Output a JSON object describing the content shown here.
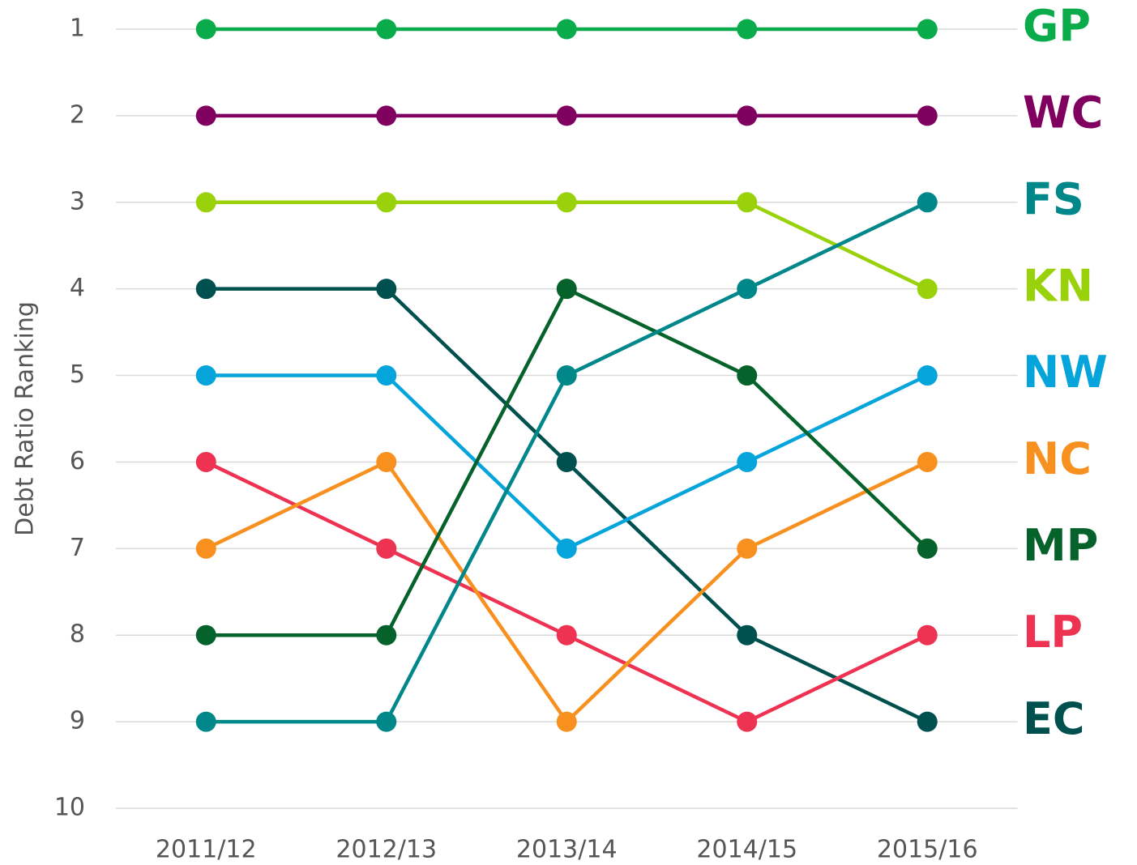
{
  "chart_data": {
    "type": "line",
    "y_label": "Debt Ratio Ranking",
    "categories": [
      "2011/12",
      "2012/13",
      "2013/14",
      "2014/15",
      "2015/16"
    ],
    "ylim": [
      1,
      10
    ],
    "y_inverted": true,
    "yticks": [
      1,
      2,
      3,
      4,
      5,
      6,
      7,
      8,
      9,
      10
    ],
    "grid": true,
    "series": [
      {
        "name": "GP",
        "color": "#0aab4a",
        "values": [
          1,
          1,
          1,
          1,
          1
        ]
      },
      {
        "name": "WC",
        "color": "#800060",
        "values": [
          2,
          2,
          2,
          2,
          2
        ]
      },
      {
        "name": "KN",
        "color": "#99d20a",
        "values": [
          3,
          3,
          3,
          3,
          4
        ]
      },
      {
        "name": "EC",
        "color": "#00504f",
        "values": [
          4,
          4,
          6,
          8,
          9
        ]
      },
      {
        "name": "NW",
        "color": "#05a5dc",
        "values": [
          5,
          5,
          7,
          6,
          5
        ]
      },
      {
        "name": "LP",
        "color": "#ee3352",
        "values": [
          6,
          7,
          8,
          9,
          8
        ]
      },
      {
        "name": "NC",
        "color": "#f7901e",
        "values": [
          7,
          6,
          9,
          7,
          6
        ]
      },
      {
        "name": "MP",
        "color": "#05622a",
        "values": [
          8,
          8,
          4,
          5,
          7
        ]
      },
      {
        "name": "FS",
        "color": "#00878a",
        "values": [
          9,
          9,
          5,
          4,
          3
        ]
      }
    ]
  }
}
